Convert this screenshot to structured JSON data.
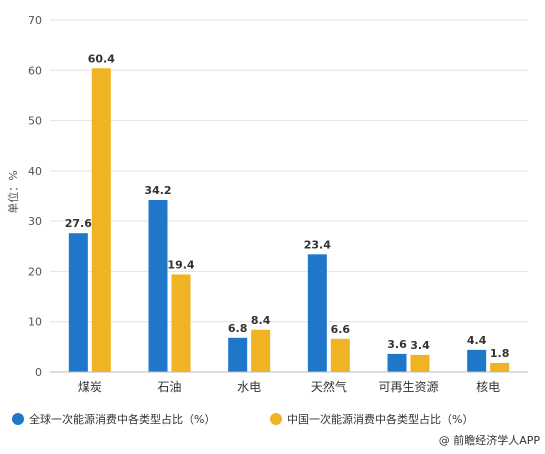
{
  "chart_data": {
    "type": "bar",
    "categories": [
      "煤炭",
      "石油",
      "水电",
      "天然气",
      "可再生资源",
      "核电"
    ],
    "series": [
      {
        "name": "全球一次能源消费中各类型占比（%）",
        "color": "#1f77c9",
        "values": [
          27.6,
          34.2,
          6.8,
          23.4,
          3.6,
          4.4
        ]
      },
      {
        "name": "中国一次能源消费中各类型占比（%）",
        "color": "#f0b323",
        "values": [
          60.4,
          19.4,
          8.4,
          6.6,
          3.4,
          1.8
        ]
      }
    ],
    "ylabel": "单位：%",
    "ylim": [
      0,
      70
    ],
    "yticks": [
      0,
      10,
      20,
      30,
      40,
      50,
      60,
      70
    ],
    "grid": true,
    "legend_position": "bottom-left"
  },
  "credit": {
    "text": "@ 前瞻经济学人APP"
  }
}
